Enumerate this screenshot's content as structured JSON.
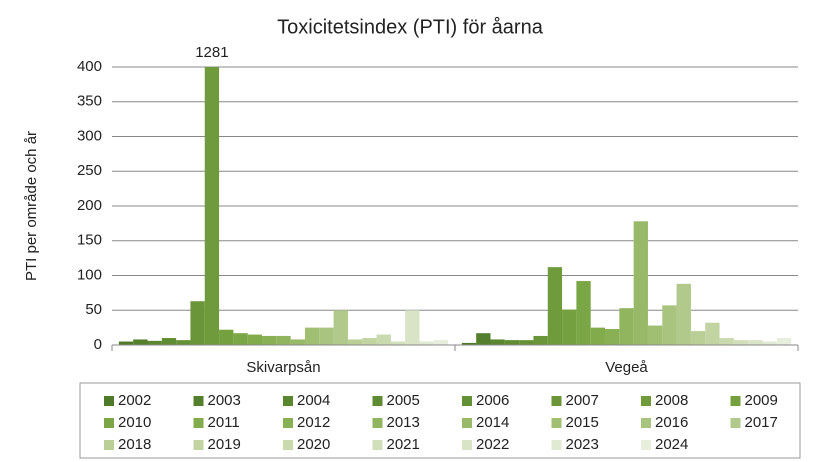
{
  "chart_data": {
    "type": "bar",
    "title": "Toxicitetsindex (PTI) för åarna",
    "y_label": "PTI per område och år",
    "categories": [
      "Skivarpsån",
      "Vegeå"
    ],
    "ylim": [
      0,
      400
    ],
    "yticks": [
      0,
      50,
      100,
      150,
      200,
      250,
      300,
      350,
      400
    ],
    "grid": true,
    "legend": "bottom",
    "series": [
      {
        "name": "2002",
        "color": "#4f7a2a",
        "values": [
          5,
          3
        ]
      },
      {
        "name": "2003",
        "color": "#54802d",
        "values": [
          8,
          17
        ]
      },
      {
        "name": "2004",
        "color": "#5a8630",
        "values": [
          6,
          8
        ]
      },
      {
        "name": "2005",
        "color": "#5f8b33",
        "values": [
          10,
          7
        ]
      },
      {
        "name": "2006",
        "color": "#659136",
        "values": [
          7,
          7
        ]
      },
      {
        "name": "2007",
        "color": "#6a9639",
        "values": [
          63,
          13
        ]
      },
      {
        "name": "2008",
        "color": "#6f9b3c",
        "values": [
          1281,
          112
        ],
        "value_labels": [
          "1281",
          null
        ]
      },
      {
        "name": "2009",
        "color": "#75a03f",
        "values": [
          22,
          51
        ]
      },
      {
        "name": "2010",
        "color": "#7ba645",
        "values": [
          17,
          92
        ]
      },
      {
        "name": "2011",
        "color": "#82ab4c",
        "values": [
          15,
          25
        ]
      },
      {
        "name": "2012",
        "color": "#89b055",
        "values": [
          13,
          23
        ]
      },
      {
        "name": "2013",
        "color": "#91b55f",
        "values": [
          13,
          53
        ]
      },
      {
        "name": "2014",
        "color": "#98ba68",
        "values": [
          8,
          178
        ]
      },
      {
        "name": "2015",
        "color": "#a0bf73",
        "values": [
          25,
          28
        ]
      },
      {
        "name": "2016",
        "color": "#a8c47e",
        "values": [
          25,
          57
        ]
      },
      {
        "name": "2017",
        "color": "#b1c98a",
        "values": [
          50,
          88
        ]
      },
      {
        "name": "2018",
        "color": "#b9cf96",
        "values": [
          8,
          20
        ]
      },
      {
        "name": "2019",
        "color": "#c1d4a2",
        "values": [
          10,
          32
        ]
      },
      {
        "name": "2020",
        "color": "#c9daae",
        "values": [
          15,
          10
        ]
      },
      {
        "name": "2021",
        "color": "#d1dfba",
        "values": [
          5,
          7
        ]
      },
      {
        "name": "2022",
        "color": "#d8e4c5",
        "values": [
          50,
          7
        ]
      },
      {
        "name": "2023",
        "color": "#e0e9d1",
        "values": [
          5,
          5
        ]
      },
      {
        "name": "2024",
        "color": "#e7eedc",
        "values": [
          7,
          10
        ]
      }
    ]
  }
}
